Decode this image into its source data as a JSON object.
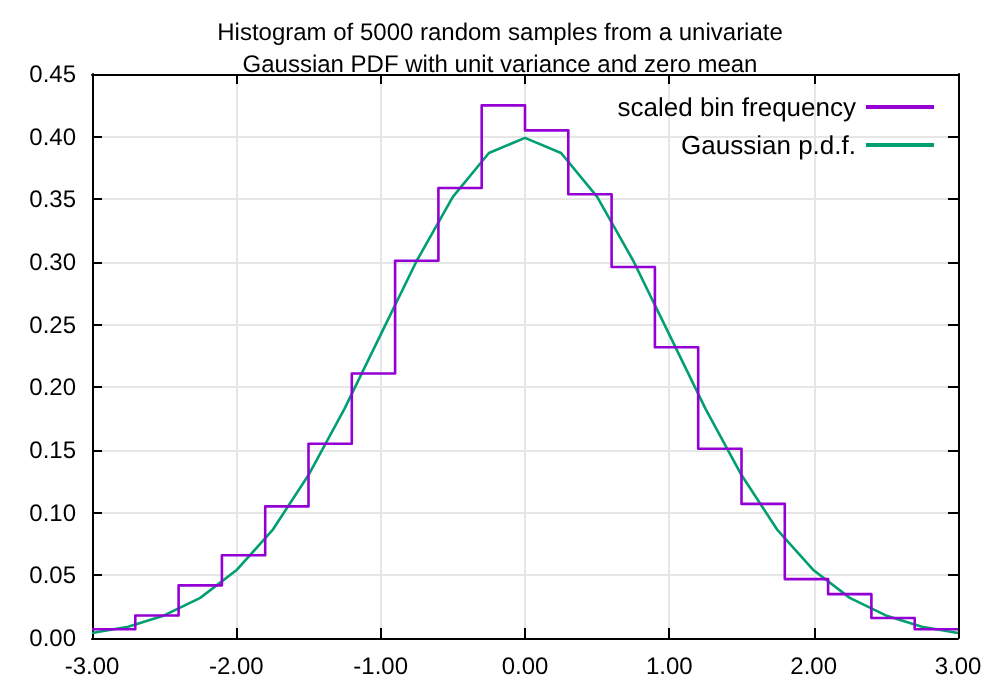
{
  "chart_data": {
    "type": "histogram",
    "title": "Histogram of 5000 random samples from a univariate\nGaussian PDF with unit variance and zero mean",
    "series": [
      {
        "name": "scaled bin frequency",
        "type": "histogram",
        "color": "#9400d3",
        "bins": [
          -3.0,
          -2.7,
          -2.4,
          -2.1,
          -1.8,
          -1.5,
          -1.2,
          -0.9,
          -0.6,
          -0.3,
          0.0,
          0.3,
          0.6,
          0.9,
          1.2,
          1.5,
          1.8,
          2.1,
          2.4,
          2.7,
          3.0
        ],
        "values": [
          0.007,
          0.018,
          0.042,
          0.066,
          0.105,
          0.155,
          0.211,
          0.301,
          0.359,
          0.425,
          0.405,
          0.354,
          0.296,
          0.232,
          0.151,
          0.107,
          0.047,
          0.035,
          0.016,
          0.007
        ]
      },
      {
        "name": "Gaussian p.d.f.",
        "type": "line",
        "color": "#009e73",
        "x": [
          -3.0,
          -2.75,
          -2.5,
          -2.25,
          -2.0,
          -1.75,
          -1.5,
          -1.25,
          -1.0,
          -0.75,
          -0.5,
          -0.25,
          0.0,
          0.25,
          0.5,
          0.75,
          1.0,
          1.25,
          1.5,
          1.75,
          2.0,
          2.25,
          2.5,
          2.75,
          3.0
        ],
        "values": [
          0.004,
          0.009,
          0.018,
          0.032,
          0.054,
          0.086,
          0.13,
          0.183,
          0.242,
          0.301,
          0.352,
          0.387,
          0.399,
          0.387,
          0.352,
          0.301,
          0.242,
          0.183,
          0.13,
          0.086,
          0.054,
          0.032,
          0.018,
          0.009,
          0.004
        ]
      }
    ],
    "xlim": [
      -3.0,
      3.0
    ],
    "xticks": [
      {
        "value": -3,
        "label": "-3.00"
      },
      {
        "value": -2,
        "label": "-2.00"
      },
      {
        "value": -1,
        "label": "-1.00"
      },
      {
        "value": 0,
        "label": "0.00"
      },
      {
        "value": 1,
        "label": "1.00"
      },
      {
        "value": 2,
        "label": "2.00"
      },
      {
        "value": 3,
        "label": "3.00"
      }
    ],
    "ylim": [
      0,
      0.45
    ],
    "yticks": [
      {
        "value": 0,
        "label": "0.00"
      },
      {
        "value": 0.05,
        "label": "0.05"
      },
      {
        "value": 0.1,
        "label": "0.10"
      },
      {
        "value": 0.15,
        "label": "0.15"
      },
      {
        "value": 0.2,
        "label": "0.20"
      },
      {
        "value": 0.25,
        "label": "0.25"
      },
      {
        "value": 0.3,
        "label": "0.30"
      },
      {
        "value": 0.35,
        "label": "0.35"
      },
      {
        "value": 0.4,
        "label": "0.40"
      },
      {
        "value": 0.45,
        "label": "0.45"
      }
    ],
    "grid": true,
    "legend": "top right",
    "marker": "none",
    "line_style": "solid"
  }
}
